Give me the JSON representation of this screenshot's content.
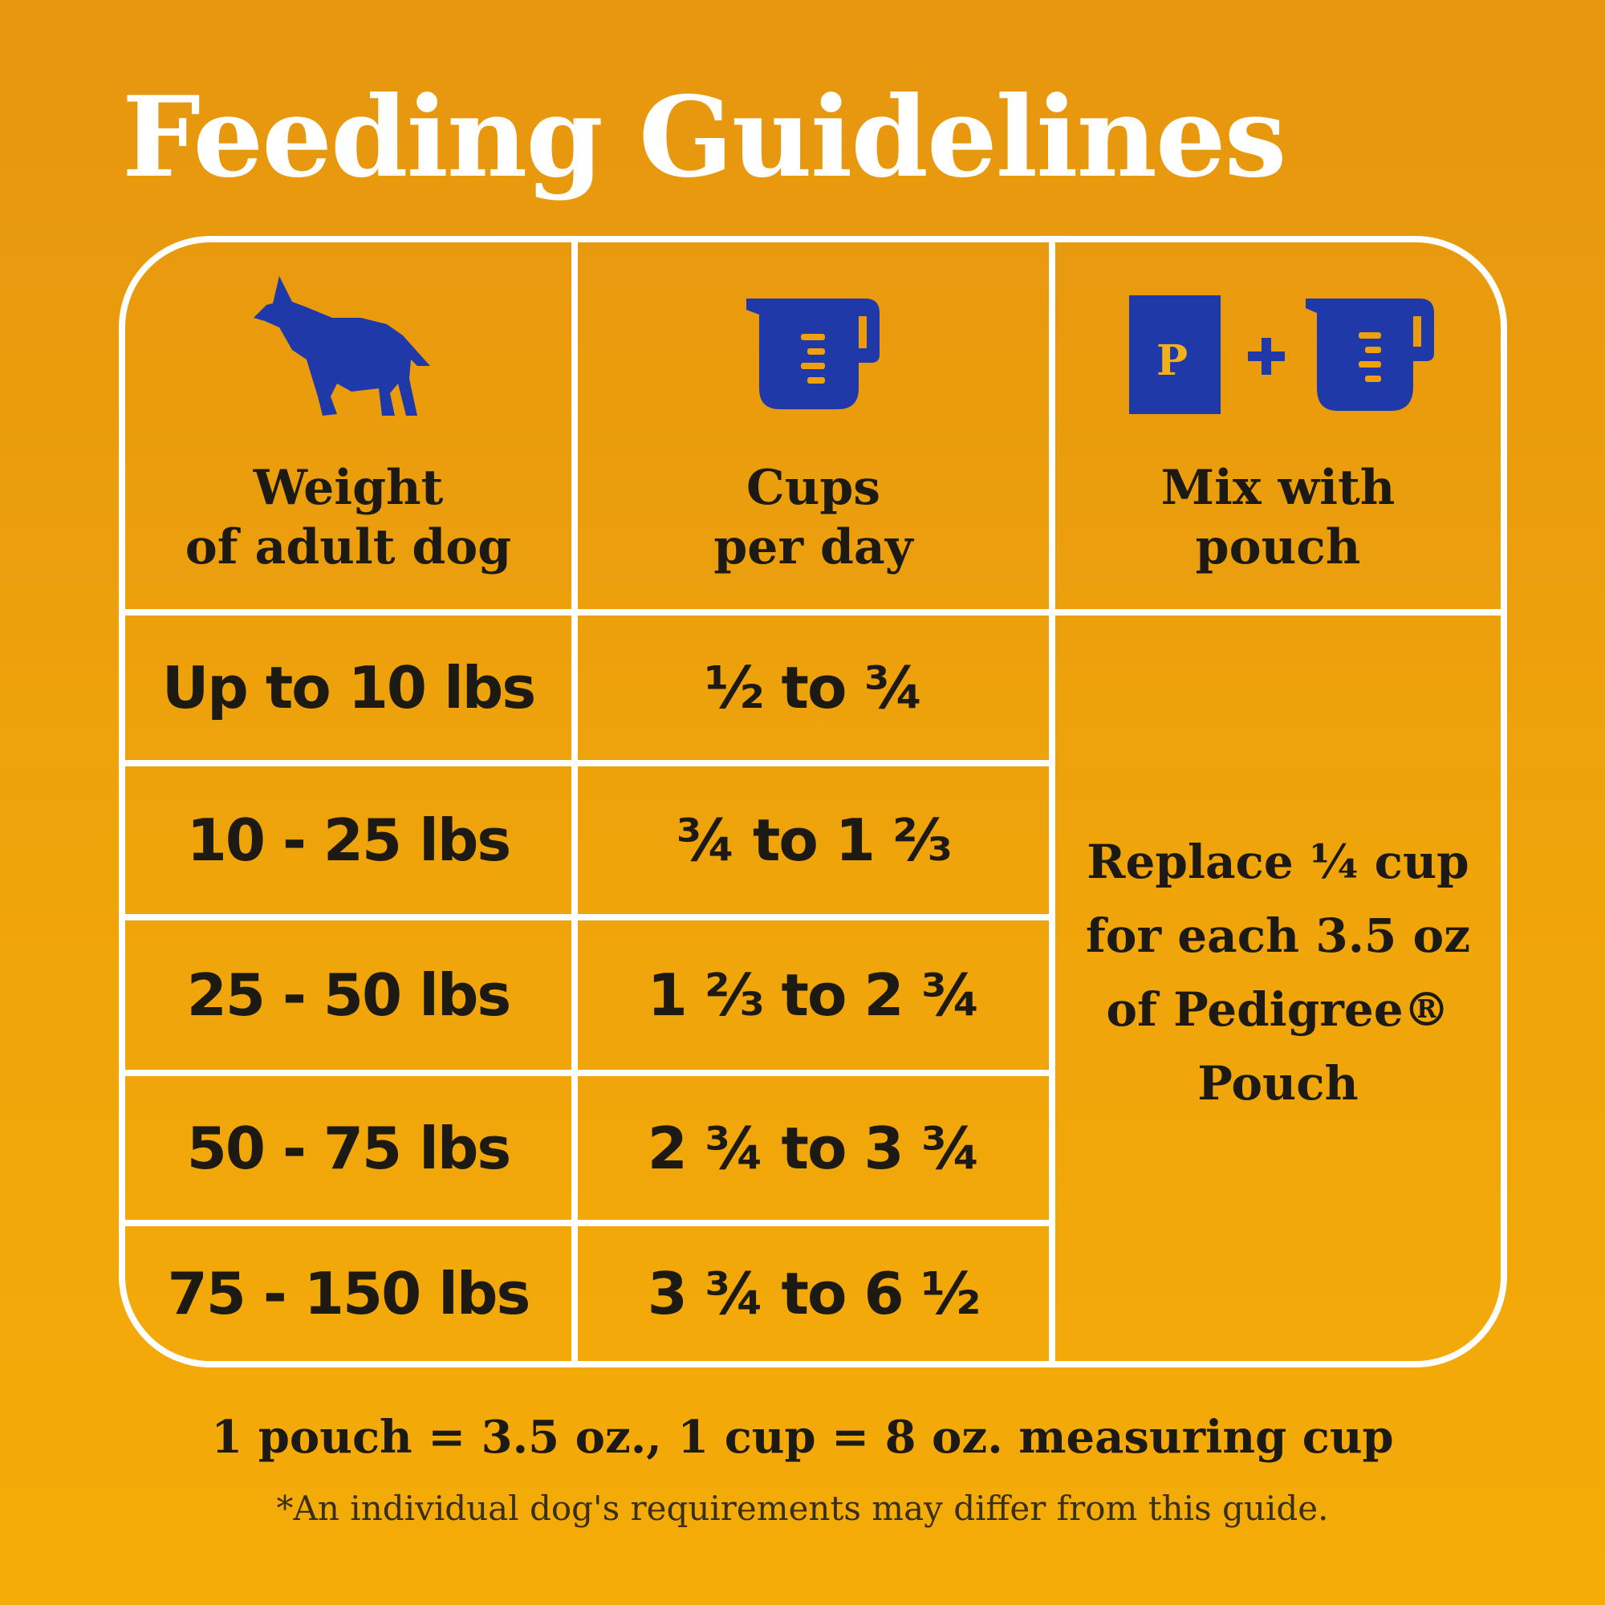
{
  "title": "Feeding Guidelines",
  "colors": {
    "background": "#eea10c",
    "grid": "#ffffff",
    "icon": "#1f3aa8",
    "icon_accent": "#f2b01a",
    "title": "#ffffff"
  },
  "table": {
    "headers": [
      {
        "icon": "dog-icon",
        "label": "Weight\nof adult dog"
      },
      {
        "icon": "measuring-cup-icon",
        "label": "Cups\nper day"
      },
      {
        "icon": "pouch-plus-cup-icon",
        "label": "Mix with\npouch",
        "pouch_letter": "P",
        "plus": "+"
      }
    ],
    "rows": [
      {
        "weight": "Up to 10 lbs",
        "cups": "½ to ¾"
      },
      {
        "weight": "10 - 25 lbs",
        "cups": "¾ to 1 ⅔"
      },
      {
        "weight": "25 - 50 lbs",
        "cups": "1 ⅔ to 2 ¾"
      },
      {
        "weight": "50 - 75 lbs",
        "cups": "2 ¾ to 3 ¾"
      },
      {
        "weight": "75 - 150 lbs",
        "cups": "3 ¾ to 6 ½"
      }
    ],
    "mix_note": "Replace ¼ cup\nfor each 3.5 oz\nof Pedigree®\nPouch"
  },
  "footer": {
    "conversion": "1 pouch = 3.5 oz., 1 cup = 8 oz. measuring cup",
    "disclaimer": "*An individual dog's requirements may differ from this guide."
  }
}
